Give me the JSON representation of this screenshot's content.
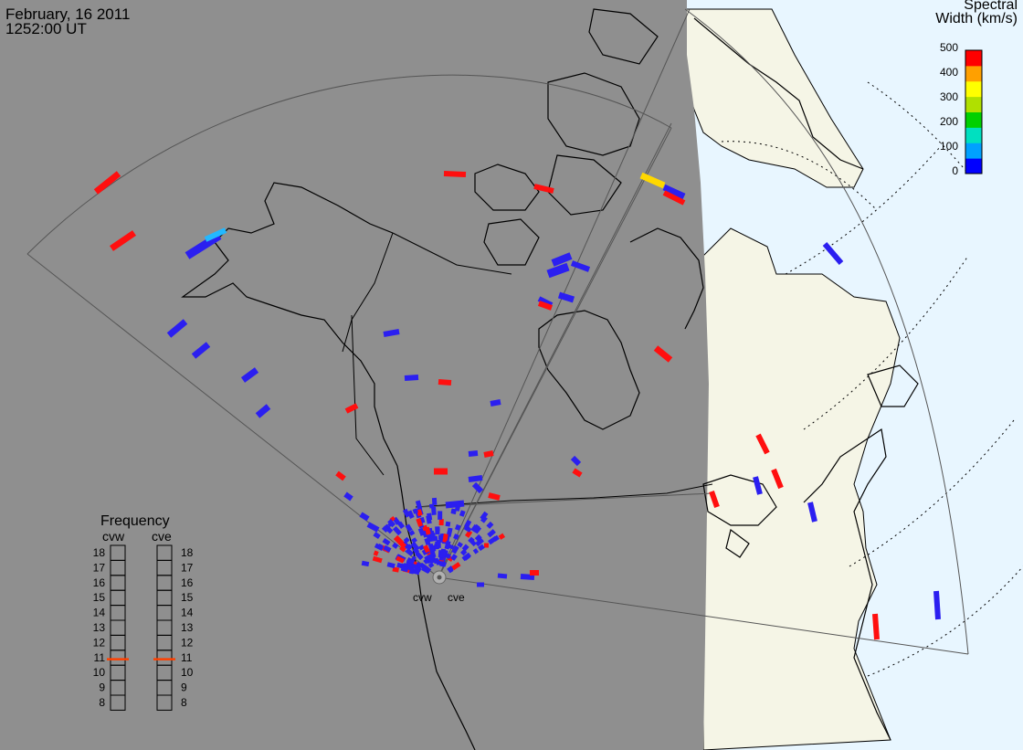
{
  "header": {
    "date": "February, 16 2011",
    "time": "1252:00 UT"
  },
  "colorbar": {
    "title_line1": "Spectral",
    "title_line2": "Width (km/s)",
    "ticks": [
      "500",
      "400",
      "300",
      "200",
      "100",
      "0"
    ],
    "colors": [
      "#0000ff",
      "#00a0ff",
      "#00e0c0",
      "#00d000",
      "#b0e000",
      "#ffff00",
      "#ffa000",
      "#ff0000"
    ]
  },
  "frequency_panel": {
    "title": "Frequency",
    "radars": [
      "cvw",
      "cve"
    ],
    "scale": [
      "18",
      "17",
      "16",
      "15",
      "14",
      "13",
      "12",
      "11",
      "10",
      "9",
      "8"
    ],
    "current_mhz": {
      "cvw": 10.9,
      "cve": 10.9
    },
    "marker_color": "#ff4000"
  },
  "stations": {
    "west": "cvw",
    "east": "cve"
  },
  "colors": {
    "night": "#8f8f8f",
    "day_land": "#f5f5e6",
    "day_ocean": "#e8f6ff",
    "low_width": "#2b1ff0",
    "high_width": "#ff0f0f",
    "mid_width": "#ffd800",
    "cyan_width": "#22b8ff"
  }
}
